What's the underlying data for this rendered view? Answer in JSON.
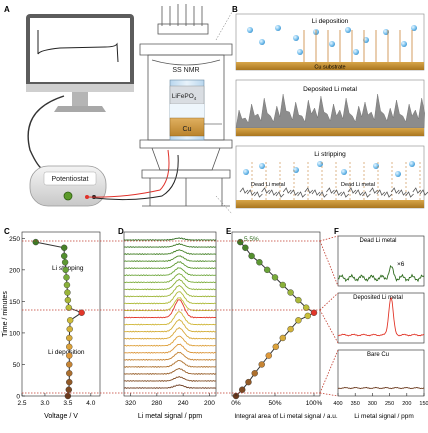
{
  "panels": {
    "a": "A",
    "b": "B",
    "c": "C",
    "d": "D",
    "e": "E",
    "f": "F"
  },
  "setup": {
    "nmr_label": "SS NMR",
    "cathode_label": "LiFePO",
    "cathode_sub": "4",
    "anode_label": "Cu",
    "potentiostat_label": "Potentiostat"
  },
  "schematic": {
    "deposition_title": "Li deposition",
    "substrate_label": "Cu substrate",
    "deposited_title": "Deposited Li metal",
    "stripping_title": "Li stripping",
    "dead_li_left": "Dead Li metal",
    "dead_li_right": "Dead Li metal"
  },
  "chart_data": [
    {
      "type": "line",
      "panel": "C",
      "xlabel": "Voltage / V",
      "ylabel": "Time / minutes",
      "xticks": [
        "2.5",
        "3.0",
        "3.5",
        "4.0"
      ],
      "yticks": [
        "0",
        "50",
        "100",
        "150",
        "200",
        "250"
      ],
      "xlim": [
        2.5,
        4.2
      ],
      "ylim": [
        0,
        260
      ],
      "annotations": [
        "Li stripping",
        "Li deposition"
      ],
      "x": [
        3.5,
        3.52,
        3.53,
        3.53,
        3.53,
        3.53,
        3.53,
        3.53,
        3.54,
        3.55,
        3.8,
        3.52,
        3.5,
        3.49,
        3.48,
        3.47,
        3.45,
        3.44,
        3.42,
        3.42,
        2.8
      ],
      "y": [
        0,
        10,
        22,
        36,
        50,
        64,
        78,
        92,
        106,
        120,
        132,
        140,
        152,
        164,
        176,
        188,
        200,
        212,
        222,
        235,
        244
      ]
    },
    {
      "type": "line",
      "panel": "D",
      "xlabel": "Li metal signal / ppm",
      "xticks": [
        "320",
        "280",
        "240",
        "200"
      ],
      "xlim": [
        330,
        190
      ],
      "peak_ppm": 246,
      "n_spectra": 22
    },
    {
      "type": "line",
      "panel": "E",
      "xlabel": "Integral area of Li metal signal / a.u.",
      "xticks": [
        "0%",
        "50%",
        "100%"
      ],
      "annotation": "5.5%",
      "x": [
        0,
        8,
        16,
        24,
        33,
        42,
        51,
        60,
        70,
        80,
        92,
        100,
        90,
        80,
        70,
        60,
        50,
        40,
        30,
        20,
        12,
        5.5
      ],
      "y": [
        0,
        10,
        22,
        36,
        50,
        64,
        78,
        92,
        106,
        120,
        127,
        132,
        140,
        152,
        164,
        176,
        188,
        200,
        212,
        222,
        235,
        244
      ]
    },
    {
      "type": "line",
      "panel": "F",
      "xlabel": "Li metal signal / ppm",
      "xticks": [
        "400",
        "350",
        "300",
        "250",
        "200",
        "150"
      ],
      "sub_titles": [
        "Dead Li metal",
        "Deposited Li metal",
        "Bare Cu"
      ],
      "multiplier": "×6"
    }
  ],
  "colors": {
    "green_dark": "#2e6b1e",
    "green_mid": "#6ea83a",
    "yellow": "#c9c23a",
    "orange": "#e19a3a",
    "red": "#e2372a",
    "brown": "#6b3a1e",
    "dotted": "#c0392b"
  }
}
